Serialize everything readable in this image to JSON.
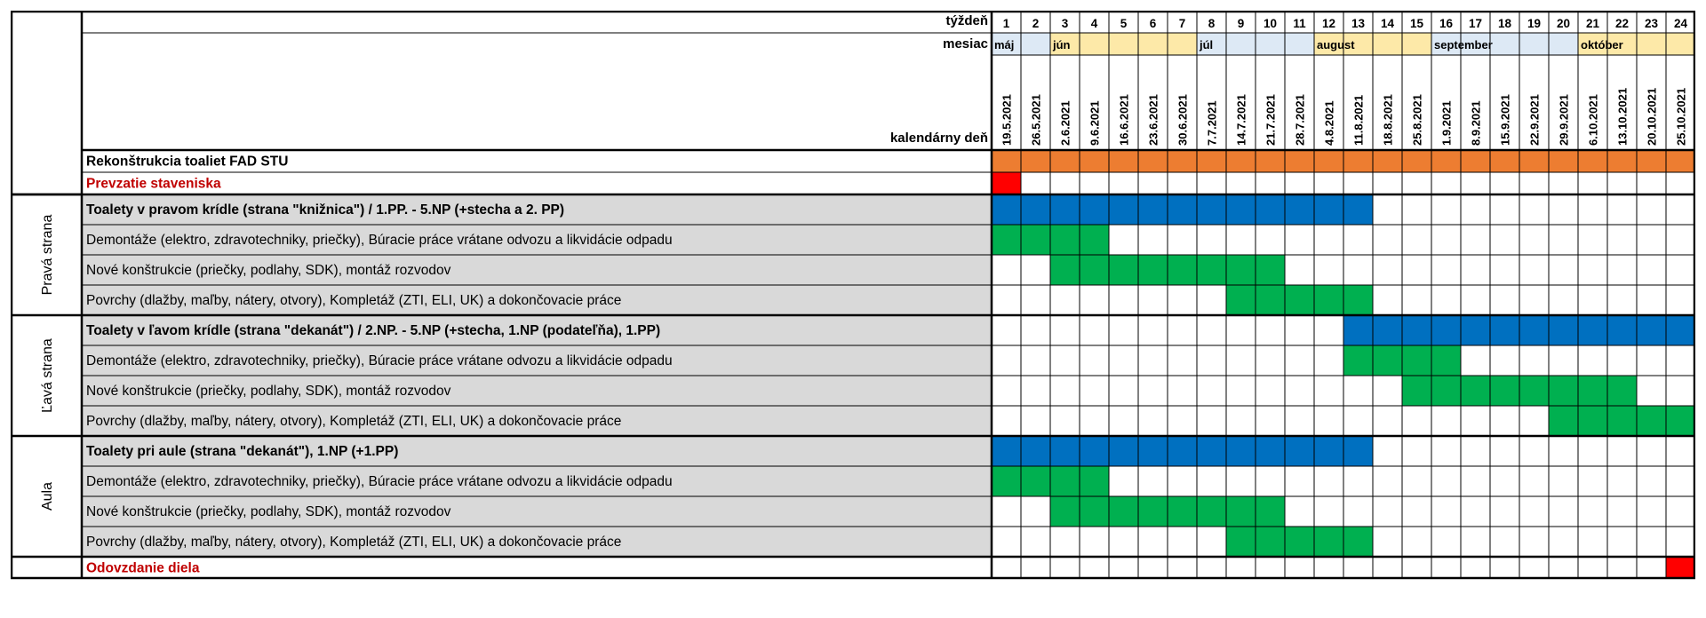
{
  "header": {
    "week_label": "týždeň",
    "month_label": "mesiac",
    "day_label": "kalendárny deň"
  },
  "chart_data": {
    "type": "table",
    "weeks": [
      1,
      2,
      3,
      4,
      5,
      6,
      7,
      8,
      9,
      10,
      11,
      12,
      13,
      14,
      15,
      16,
      17,
      18,
      19,
      20,
      21,
      22,
      23,
      24
    ],
    "dates": [
      "19.5.2021",
      "26.5.2021",
      "2.6.2021",
      "9.6.2021",
      "16.6.2021",
      "23.6.2021",
      "30.6.2021",
      "7.7.2021",
      "14.7.2021",
      "21.7.2021",
      "28.7.2021",
      "4.8.2021",
      "11.8.2021",
      "18.8.2021",
      "25.8.2021",
      "1.9.2021",
      "8.9.2021",
      "15.9.2021",
      "22.9.2021",
      "29.9.2021",
      "6.10.2021",
      "13.10.2021",
      "20.10.2021",
      "25.10.2021"
    ],
    "months": [
      {
        "name": "máj",
        "start": 1,
        "end": 2,
        "color": "#dde9f5"
      },
      {
        "name": "jún",
        "start": 3,
        "end": 7,
        "color": "#fde9a8"
      },
      {
        "name": "júl",
        "start": 8,
        "end": 11,
        "color": "#dde9f5"
      },
      {
        "name": "august",
        "start": 12,
        "end": 15,
        "color": "#fde9a8"
      },
      {
        "name": "september",
        "start": 16,
        "end": 20,
        "color": "#dde9f5"
      },
      {
        "name": "október",
        "start": 21,
        "end": 24,
        "color": "#fde9a8"
      }
    ],
    "groups": [
      {
        "name": "",
        "rows": [
          0,
          1
        ]
      },
      {
        "name": "Pravá strana",
        "rows": [
          2,
          3,
          4,
          5
        ]
      },
      {
        "name": "Ľavá strana",
        "rows": [
          6,
          7,
          8,
          9
        ]
      },
      {
        "name": "Aula",
        "rows": [
          10,
          11,
          12,
          13
        ]
      },
      {
        "name": "",
        "rows": [
          14
        ]
      }
    ],
    "rows": [
      {
        "label": "Rekonštrukcia toaliet FAD STU",
        "kind": "project",
        "bar": {
          "start": 1,
          "end": 24,
          "color": "#ed7d31"
        }
      },
      {
        "label": "Prevzatie staveniska",
        "kind": "milestone",
        "bar": {
          "start": 1,
          "end": 1,
          "color": "#ff0000"
        }
      },
      {
        "label": "Toalety v pravom krídle (strana \"knižnica\") / 1.PP. - 5.NP (+stecha a 2. PP)",
        "kind": "summary",
        "bar": {
          "start": 1,
          "end": 13,
          "color": "#0070c0"
        }
      },
      {
        "label": "Demontáže (elektro, zdravotechniky, priečky), Búracie práce vrátane odvozu a likvidácie odpadu",
        "kind": "task",
        "bar": {
          "start": 1,
          "end": 4,
          "color": "#00b050"
        }
      },
      {
        "label": "Nové konštrukcie (priečky, podlahy, SDK), montáž rozvodov",
        "kind": "task",
        "bar": {
          "start": 3,
          "end": 10,
          "color": "#00b050"
        }
      },
      {
        "label": "Povrchy (dlažby, maľby, nátery, otvory), Kompletáž (ZTI, ELI, UK) a dokončovacie práce",
        "kind": "task",
        "bar": {
          "start": 9,
          "end": 13,
          "color": "#00b050"
        }
      },
      {
        "label": "Toalety v ľavom krídle (strana \"dekanát\") / 2.NP. - 5.NP (+stecha, 1.NP (podateľňa), 1.PP)",
        "kind": "summary",
        "bar": {
          "start": 13,
          "end": 24,
          "color": "#0070c0"
        }
      },
      {
        "label": "Demontáže (elektro, zdravotechniky, priečky), Búracie práce vrátane odvozu a likvidácie odpadu",
        "kind": "task",
        "bar": {
          "start": 13,
          "end": 16,
          "color": "#00b050"
        }
      },
      {
        "label": "Nové konštrukcie (priečky, podlahy, SDK), montáž rozvodov",
        "kind": "task",
        "bar": {
          "start": 15,
          "end": 22,
          "color": "#00b050"
        }
      },
      {
        "label": "Povrchy (dlažby, maľby, nátery, otvory), Kompletáž (ZTI, ELI, UK) a dokončovacie práce",
        "kind": "task",
        "bar": {
          "start": 20,
          "end": 24,
          "color": "#00b050"
        }
      },
      {
        "label": "Toalety pri aule (strana \"dekanát\"), 1.NP (+1.PP)",
        "kind": "summary",
        "bar": {
          "start": 1,
          "end": 13,
          "color": "#0070c0"
        }
      },
      {
        "label": "Demontáže (elektro, zdravotechniky, priečky), Búracie práce vrátane odvozu a likvidácie odpadu",
        "kind": "task",
        "bar": {
          "start": 1,
          "end": 4,
          "color": "#00b050"
        }
      },
      {
        "label": "Nové konštrukcie (priečky, podlahy, SDK), montáž rozvodov",
        "kind": "task",
        "bar": {
          "start": 3,
          "end": 10,
          "color": "#00b050"
        }
      },
      {
        "label": "Povrchy (dlažby, maľby, nátery, otvory), Kompletáž (ZTI, ELI, UK) a dokončovacie práce",
        "kind": "task",
        "bar": {
          "start": 9,
          "end": 13,
          "color": "#00b050"
        }
      },
      {
        "label": "Odovzdanie diela",
        "kind": "milestone",
        "bar": {
          "start": 24,
          "end": 24,
          "color": "#ff0000"
        }
      }
    ],
    "colors": {
      "label_bg_gray": "#d9d9d9",
      "milestone_text": "#c00000",
      "grid": "#000000"
    }
  }
}
